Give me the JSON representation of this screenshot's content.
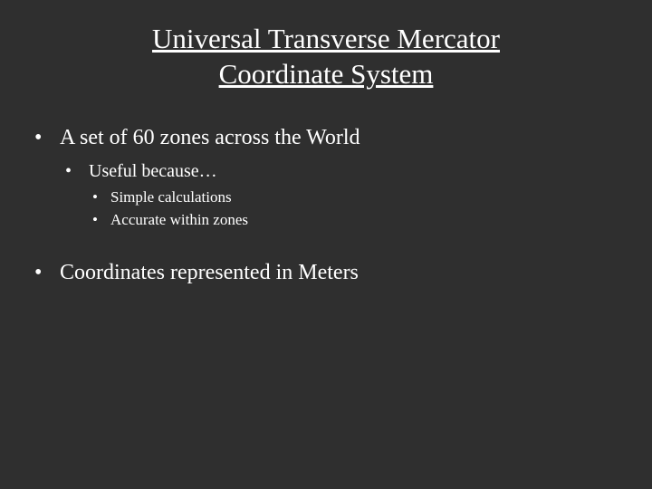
{
  "slide": {
    "background_color": "#2f2f2f",
    "text_color": "#ffffff",
    "font_family": "Times New Roman",
    "title": {
      "line1": "Universal Transverse Mercator",
      "line2": "Coordinate System",
      "fontsize": 31,
      "underline": true,
      "align": "center"
    },
    "bullets": [
      {
        "text": "A set of 60 zones across the World",
        "fontsize": 24,
        "children": [
          {
            "text": "Useful because…",
            "fontsize": 20,
            "children": [
              {
                "text": "Simple calculations",
                "fontsize": 17
              },
              {
                "text": "Accurate within zones",
                "fontsize": 17
              }
            ]
          }
        ]
      },
      {
        "text": "Coordinates represented in Meters",
        "fontsize": 24,
        "space_before": true
      }
    ],
    "bullet_glyph": "•"
  }
}
